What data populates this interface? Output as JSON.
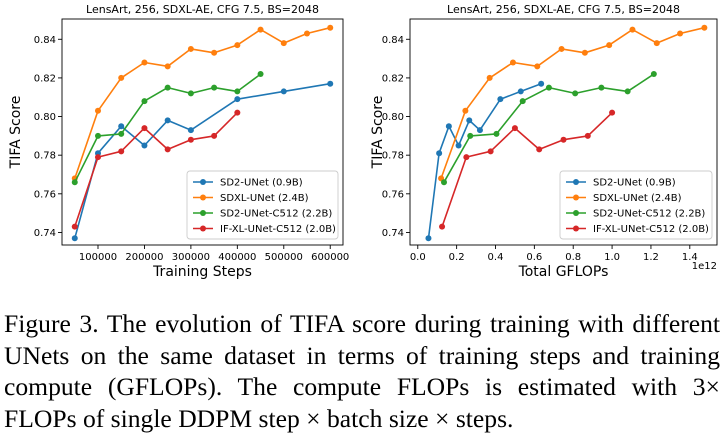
{
  "caption": {
    "label": "Figure 3.",
    "text": "The evolution of TIFA score during training with different UNets on the same dataset in terms of training steps and training compute (GFLOPs). The compute FLOPs is estimated with 3× FLOPs of single DDPM step × batch size × steps."
  },
  "chart_data": [
    {
      "type": "line",
      "title": "LensArt, 256, SDXL-AE, CFG 7.5, BS=2048",
      "xlabel": "Training Steps",
      "ylabel": "TIFA Score",
      "xlim": [
        22500,
        627500
      ],
      "ylim": [
        0.7335,
        0.8505
      ],
      "xticks": [
        100000,
        200000,
        300000,
        400000,
        500000,
        600000
      ],
      "xtick_labels": [
        "100000",
        "200000",
        "300000",
        "400000",
        "500000",
        "600000"
      ],
      "yticks": [
        0.74,
        0.76,
        0.78,
        0.8,
        0.82,
        0.84
      ],
      "ytick_labels": [
        "0.74",
        "0.76",
        "0.78",
        "0.80",
        "0.82",
        "0.84"
      ],
      "x_exponent_label": "",
      "legend": "bottom-right",
      "series": [
        {
          "name": "SD2-UNet (0.9B)",
          "color": "#1f77b4",
          "x": [
            50000,
            100000,
            150000,
            200000,
            250000,
            300000,
            400000,
            500000,
            600000
          ],
          "y": [
            0.737,
            0.781,
            0.795,
            0.785,
            0.798,
            0.793,
            0.809,
            0.813,
            0.817
          ]
        },
        {
          "name": "SDXL-UNet (2.4B)",
          "color": "#ff7f0e",
          "x": [
            50000,
            100000,
            150000,
            200000,
            250000,
            300000,
            350000,
            400000,
            450000,
            500000,
            550000,
            600000
          ],
          "y": [
            0.768,
            0.803,
            0.82,
            0.828,
            0.826,
            0.835,
            0.833,
            0.837,
            0.845,
            0.838,
            0.843,
            0.846
          ]
        },
        {
          "name": "SD2-UNet-C512 (2.2B)",
          "color": "#2ca02c",
          "x": [
            50000,
            100000,
            150000,
            200000,
            250000,
            300000,
            350000,
            400000,
            450000
          ],
          "y": [
            0.766,
            0.79,
            0.791,
            0.808,
            0.815,
            0.812,
            0.815,
            0.813,
            0.822
          ]
        },
        {
          "name": "IF-XL-UNet-C512 (2.0B)",
          "color": "#d62728",
          "x": [
            50000,
            100000,
            150000,
            200000,
            250000,
            300000,
            350000,
            400000
          ],
          "y": [
            0.743,
            0.779,
            0.782,
            0.794,
            0.783,
            0.788,
            0.79,
            0.802
          ]
        }
      ]
    },
    {
      "type": "line",
      "title": "LensArt, 256, SDXL-AE, CFG 7.5, BS=2048",
      "xlabel": "Total GFLOPs",
      "ylabel": "TIFA Score",
      "xlim": [
        -0.04,
        1.54
      ],
      "ylim": [
        0.7335,
        0.8505
      ],
      "xticks": [
        0.0,
        0.2,
        0.4,
        0.6,
        0.8,
        1.0,
        1.2,
        1.4
      ],
      "xtick_labels": [
        "0.0",
        "0.2",
        "0.4",
        "0.6",
        "0.8",
        "1.0",
        "1.2",
        "1.4"
      ],
      "yticks": [
        0.74,
        0.76,
        0.78,
        0.8,
        0.82,
        0.84
      ],
      "ytick_labels": [
        "0.74",
        "0.76",
        "0.78",
        "0.80",
        "0.82",
        "0.84"
      ],
      "x_exponent_label": "1e12",
      "legend": "bottom-right",
      "series": [
        {
          "name": "SD2-UNet (0.9B)",
          "color": "#1f77b4",
          "x": [
            0.055,
            0.11,
            0.16,
            0.21,
            0.265,
            0.32,
            0.425,
            0.53,
            0.635
          ],
          "y": [
            0.737,
            0.781,
            0.795,
            0.785,
            0.798,
            0.793,
            0.809,
            0.813,
            0.817
          ]
        },
        {
          "name": "SDXL-UNet (2.4B)",
          "color": "#ff7f0e",
          "x": [
            0.12,
            0.245,
            0.37,
            0.49,
            0.615,
            0.74,
            0.86,
            0.985,
            1.105,
            1.23,
            1.35,
            1.475
          ],
          "y": [
            0.768,
            0.803,
            0.82,
            0.828,
            0.826,
            0.835,
            0.833,
            0.837,
            0.845,
            0.838,
            0.843,
            0.846
          ]
        },
        {
          "name": "SD2-UNet-C512 (2.2B)",
          "color": "#2ca02c",
          "x": [
            0.135,
            0.27,
            0.405,
            0.54,
            0.675,
            0.81,
            0.945,
            1.08,
            1.215
          ],
          "y": [
            0.766,
            0.79,
            0.791,
            0.808,
            0.815,
            0.812,
            0.815,
            0.813,
            0.822
          ]
        },
        {
          "name": "IF-XL-UNet-C512 (2.0B)",
          "color": "#d62728",
          "x": [
            0.125,
            0.25,
            0.375,
            0.5,
            0.625,
            0.75,
            0.875,
            1.0
          ],
          "y": [
            0.743,
            0.779,
            0.782,
            0.794,
            0.783,
            0.788,
            0.79,
            0.802
          ]
        }
      ]
    }
  ]
}
